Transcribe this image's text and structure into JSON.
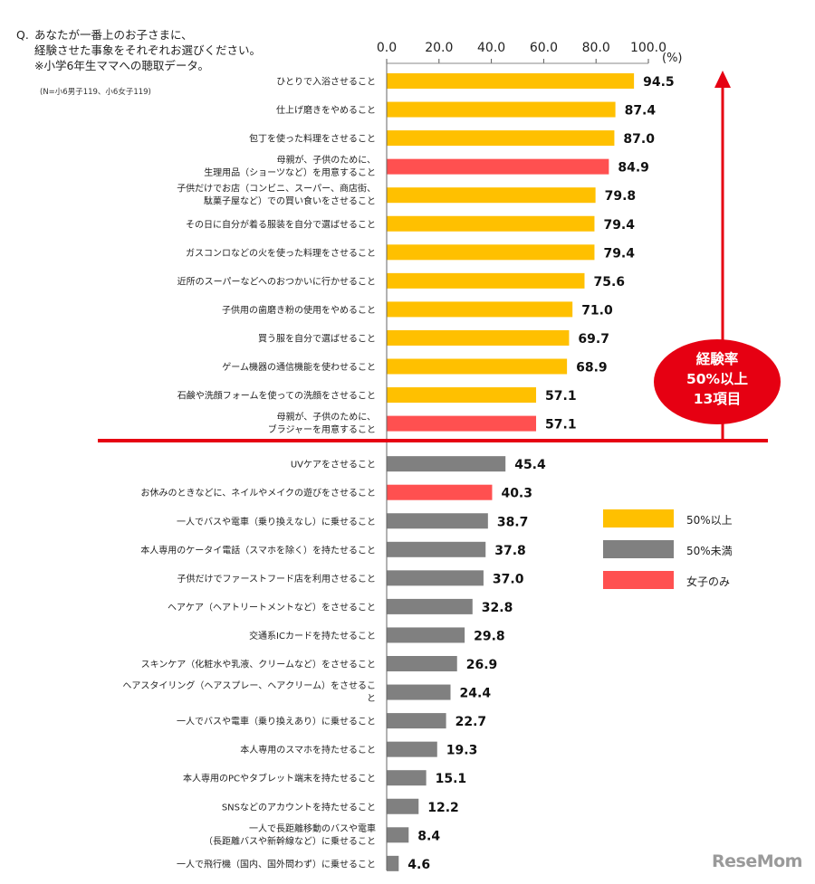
{
  "question": {
    "prefix": "Q.",
    "lines": [
      "あなたが一番上のお子さまに、",
      "経験させた事象をそれぞれお選びください。",
      "※小学6年生ママへの聴取データ。"
    ]
  },
  "sample_note": "(N=小6男子119、小6女子119)",
  "callout": {
    "lines": [
      "経験率",
      "50%以上",
      "13項目"
    ]
  },
  "legend": [
    {
      "label": "50%以上",
      "color": "#ffc000"
    },
    {
      "label": "50%未満",
      "color": "#808080"
    },
    {
      "label": "女子のみ",
      "color": "#ff5050"
    }
  ],
  "watermark": "ReseMom",
  "colors": {
    "threshold_line": "#e60012",
    "arrow": "#e60012"
  },
  "chart_data": {
    "type": "bar",
    "orientation": "horizontal",
    "unit": "(%)",
    "xlim": [
      0,
      100
    ],
    "ticks": [
      "0.0",
      "20.0",
      "40.0",
      "60.0",
      "80.0",
      "100.0"
    ],
    "categories": [
      [
        "ひとりで入浴させること"
      ],
      [
        "仕上げ磨きをやめること"
      ],
      [
        "包丁を使った料理をさせること"
      ],
      [
        "母親が、子供のために、",
        "生理用品（ショーツなど）を用意すること"
      ],
      [
        "子供だけでお店（コンビニ、スーパー、商店街、",
        "駄菓子屋など）での買い食いをさせること"
      ],
      [
        "その日に自分が着る服装を自分で選ばせること"
      ],
      [
        "ガスコンロなどの火を使った料理をさせること"
      ],
      [
        "近所のスーパーなどへのおつかいに行かせること"
      ],
      [
        "子供用の歯磨き粉の使用をやめること"
      ],
      [
        "買う服を自分で選ばせること"
      ],
      [
        "ゲーム機器の通信機能を使わせること"
      ],
      [
        "石鹸や洗顔フォームを使っての洗顔をさせること"
      ],
      [
        "母親が、子供のために、",
        "ブラジャーを用意すること"
      ],
      [
        "UVケアをさせること"
      ],
      [
        "お休みのときなどに、ネイルやメイクの遊びをさせること"
      ],
      [
        "一人でバスや電車（乗り換えなし）に乗せること"
      ],
      [
        "本人専用のケータイ電話（スマホを除く）を持たせること"
      ],
      [
        "子供だけでファーストフード店を利用させること"
      ],
      [
        "ヘアケア（ヘアトリートメントなど）をさせること"
      ],
      [
        "交通系ICカードを持たせること"
      ],
      [
        "スキンケア（化粧水や乳液、クリームなど）をさせること"
      ],
      [
        "ヘアスタイリング（ヘアスプレー、ヘアクリーム）をさせるこ",
        "と"
      ],
      [
        "一人でバスや電車（乗り換えあり）に乗せること"
      ],
      [
        "本人専用のスマホを持たせること"
      ],
      [
        "本人専用のPCやタブレット端末を持たせること"
      ],
      [
        "SNSなどのアカウントを持たせること"
      ],
      [
        "一人で長距離移動のバスや電車",
        "（長距離バスや新幹線など）に乗せること"
      ],
      [
        "一人で飛行機（国内、国外問わず）に乗せること"
      ]
    ],
    "values": [
      94.5,
      87.4,
      87.0,
      84.9,
      79.8,
      79.4,
      79.4,
      75.6,
      71.0,
      69.7,
      68.9,
      57.1,
      57.1,
      45.4,
      40.3,
      38.7,
      37.8,
      37.0,
      32.8,
      29.8,
      26.9,
      24.4,
      22.7,
      19.3,
      15.1,
      12.2,
      8.4,
      4.6
    ],
    "value_labels": [
      "94.5",
      "87.4",
      "87.0",
      "84.9",
      "79.8",
      "79.4",
      "79.4",
      "75.6",
      "71.0",
      "69.7",
      "68.9",
      "57.1",
      "57.1",
      "45.4",
      "40.3",
      "38.7",
      "37.8",
      "37.0",
      "32.8",
      "29.8",
      "26.9",
      "24.4",
      "22.7",
      "19.3",
      "15.1",
      "12.2",
      "8.4",
      "4.6"
    ],
    "groups": [
      "50%以上",
      "50%以上",
      "50%以上",
      "女子のみ",
      "50%以上",
      "50%以上",
      "50%以上",
      "50%以上",
      "50%以上",
      "50%以上",
      "50%以上",
      "50%以上",
      "女子のみ",
      "50%未満",
      "女子のみ",
      "50%未満",
      "50%未満",
      "50%未満",
      "50%未満",
      "50%未満",
      "50%未満",
      "50%未満",
      "50%未満",
      "50%未満",
      "50%未満",
      "50%未満",
      "50%未満",
      "50%未満"
    ],
    "threshold_after_index": 12
  }
}
